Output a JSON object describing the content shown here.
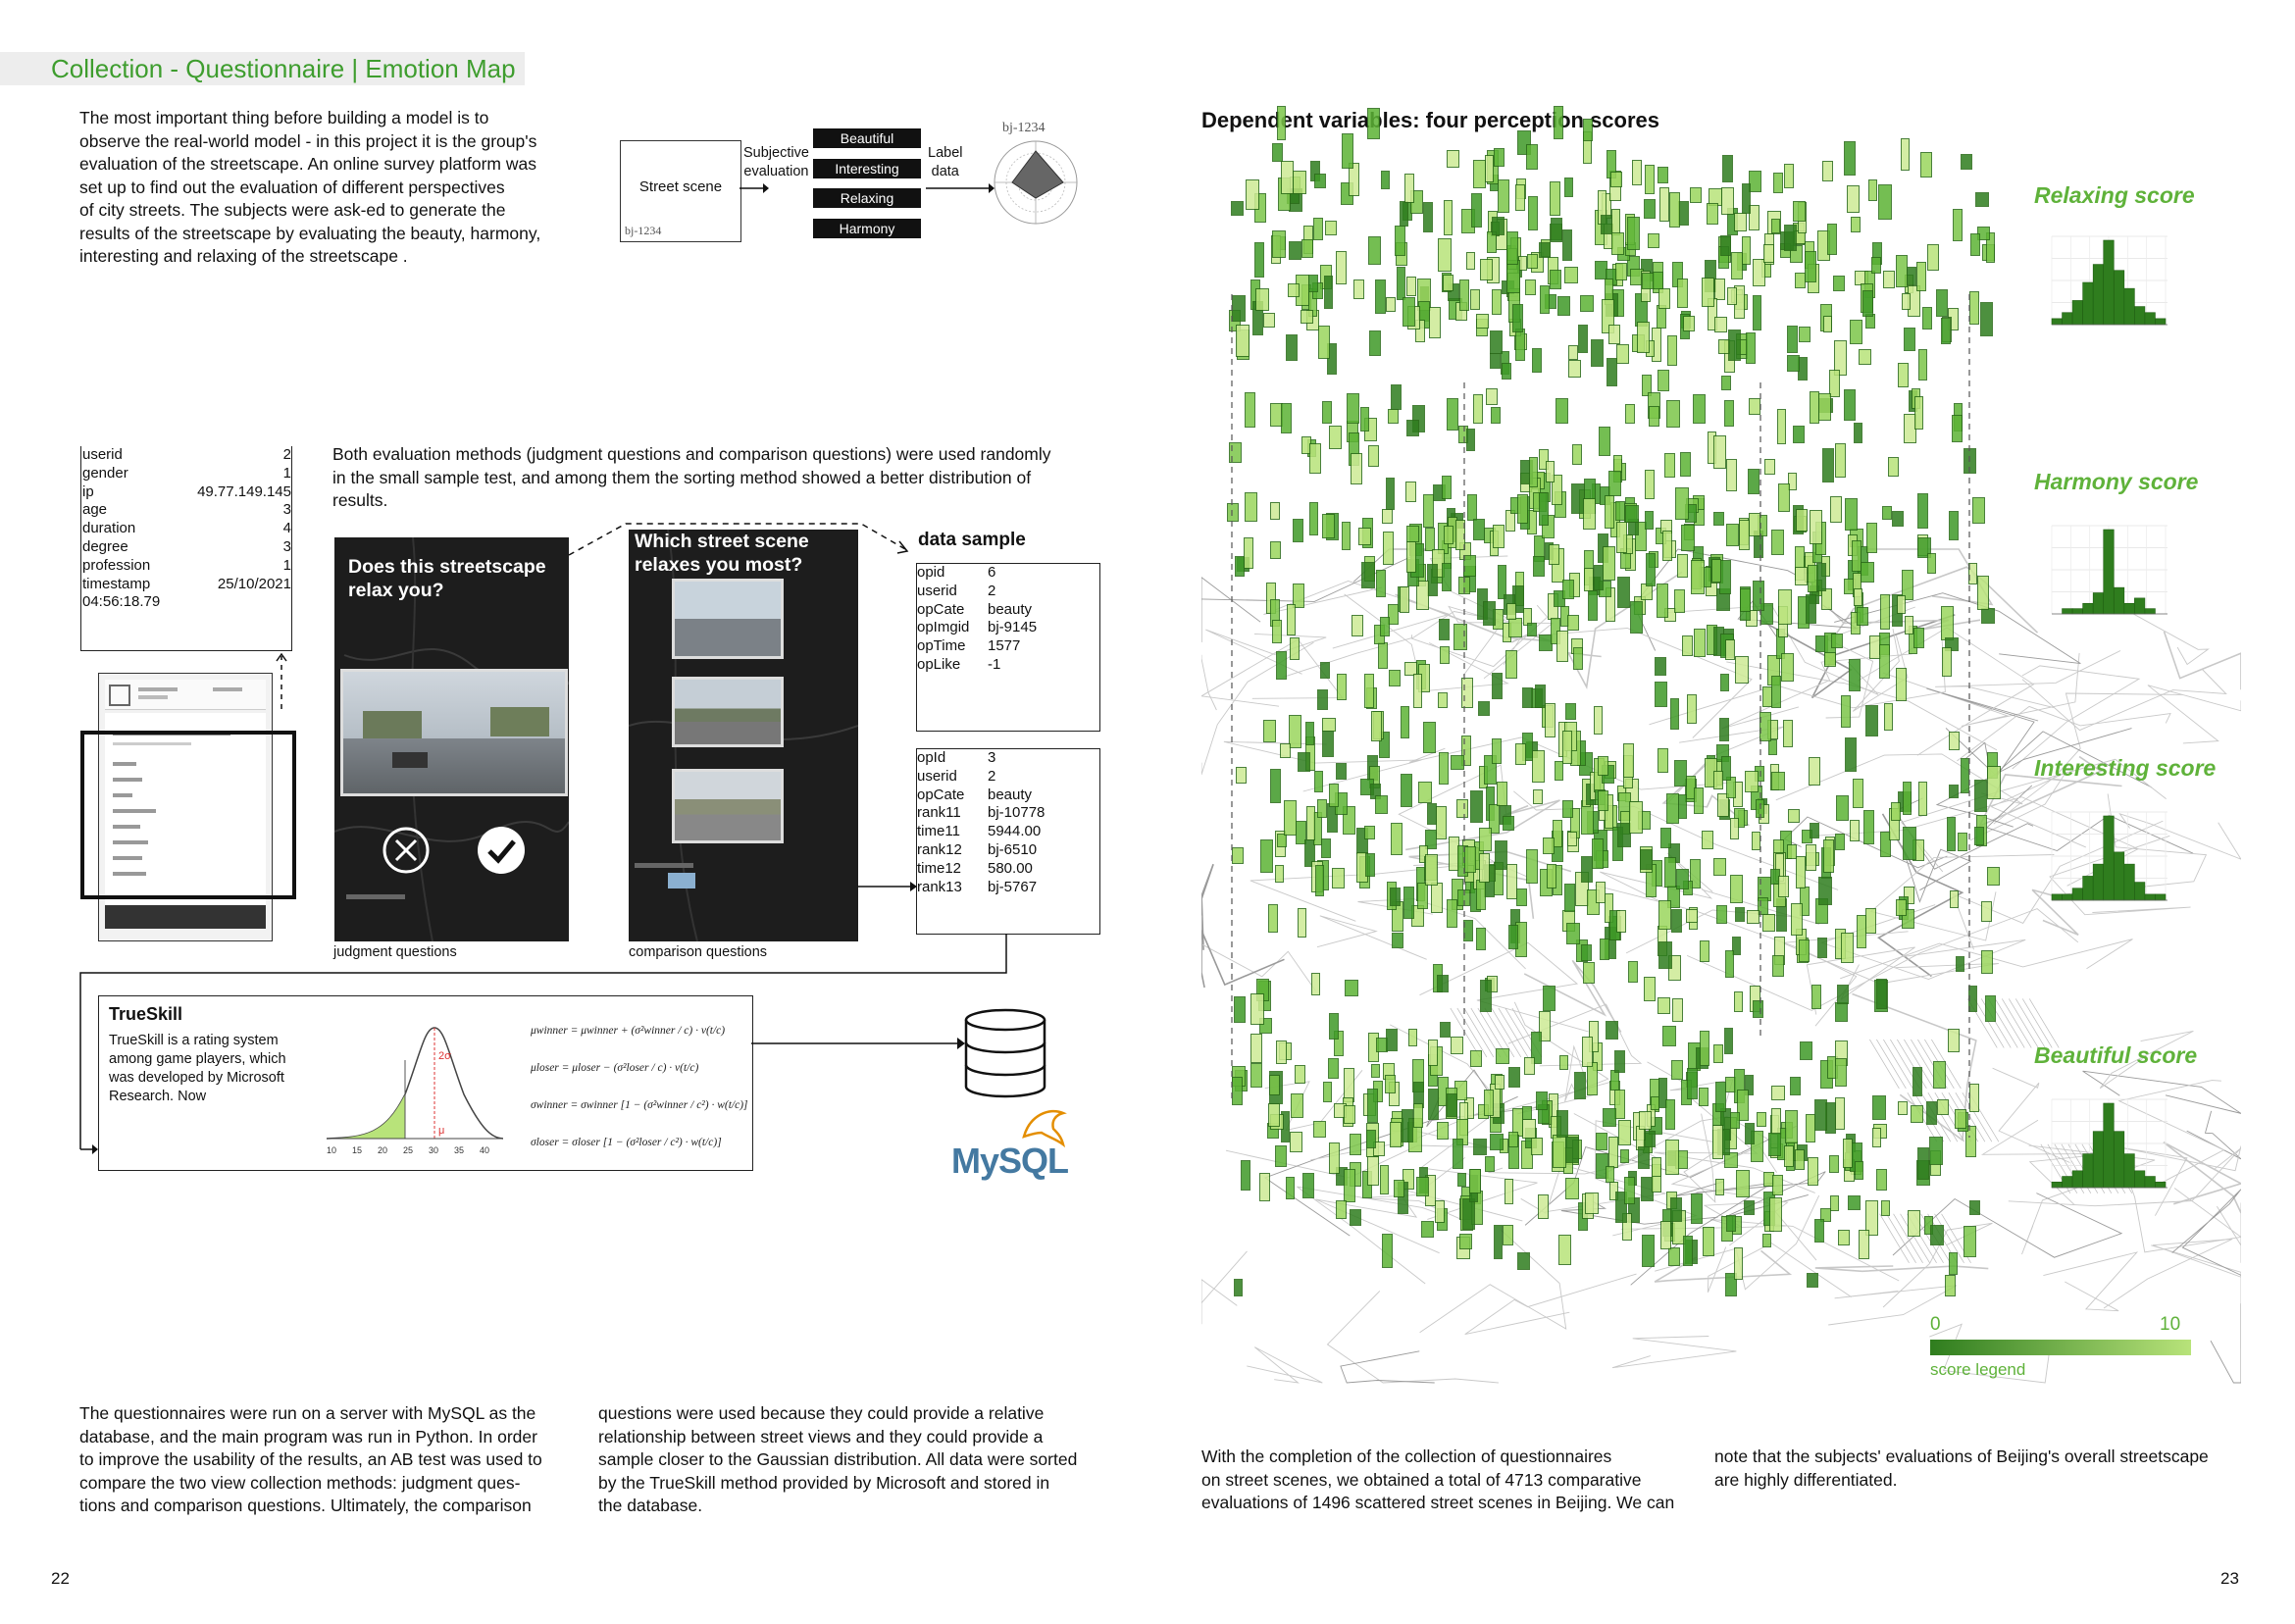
{
  "header": {
    "title": "Collection - Questionnaire | Emotion Map"
  },
  "intro": {
    "lines": [
      "The most important thing before building a model is to",
      "observe the real-world model - in this project it is the group's",
      "evaluation of the streetscape. An online survey platform was",
      "set up to find out the evaluation of different perspectives",
      "of city streets. The subjects were ask-ed to generate the",
      "results of the streetscape by evaluating the beauty, harmony,",
      "interesting and relaxing of the streetscape ."
    ]
  },
  "flow": {
    "street_scene": "Street scene",
    "image_id": "bj-1234",
    "subjective": [
      "Subjective",
      "evaluation"
    ],
    "tags": [
      "Beautiful",
      "Interesting",
      "Relaxing",
      "Harmony"
    ],
    "label_data": [
      "Label",
      "data"
    ],
    "radar_id": "bj-1234"
  },
  "user_record": {
    "rows": [
      {
        "k": "userid",
        "v": "2"
      },
      {
        "k": "gender",
        "v": "1"
      },
      {
        "k": "ip",
        "v": "49.77.149.145"
      },
      {
        "k": "age",
        "v": "3"
      },
      {
        "k": "duration",
        "v": "4"
      },
      {
        "k": "degree",
        "v": "3"
      },
      {
        "k": "profession",
        "v": "1"
      },
      {
        "k": "timestamp",
        "v": "25/10/2021"
      }
    ],
    "time": "04:56:18.79"
  },
  "methods": {
    "lines": [
      "Both evaluation methods (judgment questions and comparison questions) were used randomly",
      "in the small sample test, and among them the sorting method showed a better distribution of",
      "results."
    ],
    "judgment_title": [
      "Does this streetscape",
      "relax you?"
    ],
    "comparison_title": [
      "Which street scene",
      "relaxes you most?"
    ],
    "judgment_caption": "judgment questions",
    "comparison_caption": "comparison questions"
  },
  "data_sample": {
    "title": "data sample",
    "sample1": [
      {
        "k": "opid",
        "v": "6"
      },
      {
        "k": "userid",
        "v": "2"
      },
      {
        "k": "opCate",
        "v": "beauty"
      },
      {
        "k": "opImgid",
        "v": "bj-9145"
      },
      {
        "k": "opTime",
        "v": "1577"
      },
      {
        "k": "opLike",
        "v": "-1"
      }
    ],
    "sample2": [
      {
        "k": "opId",
        "v": "3"
      },
      {
        "k": "userid",
        "v": "2"
      },
      {
        "k": "opCate",
        "v": "beauty"
      },
      {
        "k": "rank11",
        "v": "bj-10778"
      },
      {
        "k": "time11",
        "v": "5944.00"
      },
      {
        "k": "rank12",
        "v": "bj-6510"
      },
      {
        "k": "time12",
        "v": "580.00"
      },
      {
        "k": "rank13",
        "v": "bj-5767"
      }
    ]
  },
  "trueskill": {
    "title": "TrueSkill",
    "lines": [
      "TrueSkill is a rating system",
      "among game players, which",
      "was developed by Microsoft",
      "Research. Now"
    ],
    "x_ticks": [
      "10",
      "15",
      "20",
      "25",
      "30",
      "35",
      "40"
    ],
    "sigma_label": "2σ",
    "mu_label": "μ",
    "formulas": [
      "μwinner = μwinner + (σ²winner / c) · v(t/c)",
      "μloser = μloser − (σ²loser / c) · v(t/c)",
      "σwinner = σwinner [1 − (σ²winner / c²) · w(t/c)]",
      "σloser = σloser [1 − (σ²loser / c²) · w(t/c)]"
    ]
  },
  "mysql": {
    "label": "MySQL"
  },
  "bottom_left": {
    "col1": [
      "The questionnaires were run on a server with MySQL as the",
      "database, and the main program was run in Python. In order",
      "to improve the usability of the results, an AB test was used to",
      "compare the two view collection methods: judgment ques-",
      "tions and comparison questions. Ultimately, the comparison"
    ],
    "col2": [
      "questions were used because they could provide a relative",
      "relationship between street views and they could provide a",
      "sample closer to the Gaussian distribution. All data were sorted",
      "by the TrueSkill method provided by Microsoft and stored in",
      "the database."
    ]
  },
  "right": {
    "title": "Dependent variables:  four perception scores",
    "scores": [
      "Relaxing score",
      "Harmony score",
      "Interesting score",
      "Beautiful score"
    ],
    "legend": {
      "min": "0",
      "max": "10",
      "label": "score legend"
    },
    "col1": [
      "With the completion of the collection of questionnaires",
      "on street scenes, we obtained a total of 4713 comparative",
      "evaluations of 1496 scattered street scenes in Beijing. We can"
    ],
    "col2": [
      "note that the subjects' evaluations of Beijing's overall streetscape",
      "are highly differentiated."
    ]
  },
  "pages": {
    "left": "22",
    "right": "23"
  },
  "colors": {
    "accent": "#3e9d2e",
    "score_title": "#5fb23a",
    "hist": "#2f7d1e",
    "dark_green": "#2f7d1e",
    "light_green": "#b8e37a"
  }
}
